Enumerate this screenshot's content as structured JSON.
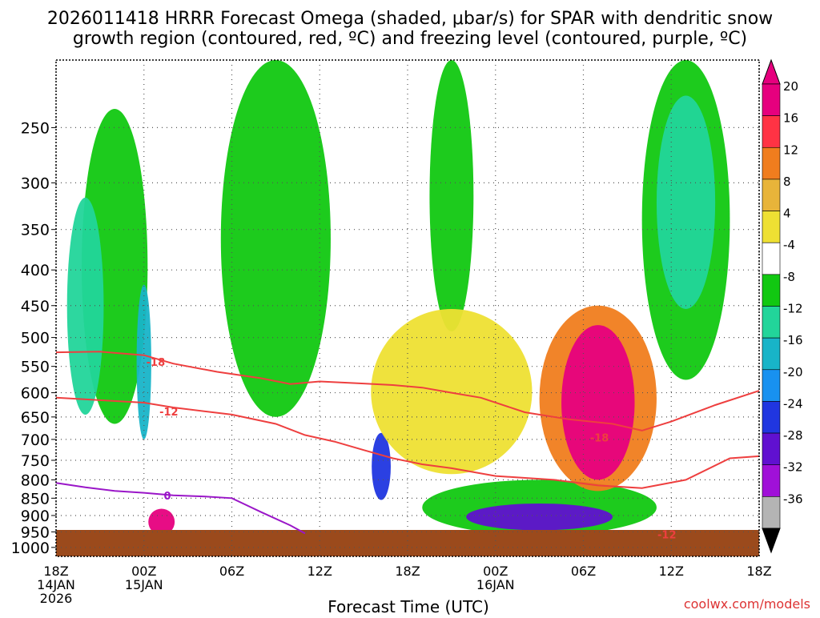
{
  "title": {
    "line1": "2026011418 HRRR Forecast Omega (shaded, μbar/s) for SPAR with dendritic snow",
    "line2": "growth region (contoured, red, ºC) and freezing level (contoured, purple, ºC)"
  },
  "footer": {
    "xlabel": "Forecast Time (UTC)",
    "credit": "coolwx.com/models"
  },
  "colors": {
    "ground": "#9b4a1c",
    "dgz_contour": "#ee3f3f",
    "freezing_contour": "#9a16c8",
    "grid": "#555555"
  },
  "chart_data": {
    "type": "heatmap",
    "xlabel": "Forecast Time (UTC)",
    "ylabel": "",
    "x_range": [
      "2026-01-14 18Z",
      "2026-01-16 18Z"
    ],
    "y_range_hPa": [
      200,
      1030
    ],
    "y_scale": "log-pressure",
    "grid": true,
    "x_ticks": [
      {
        "label": "18Z",
        "sub1": "14JAN",
        "sub2": "2026",
        "hours": 0
      },
      {
        "label": "00Z",
        "sub1": "15JAN",
        "sub2": "",
        "hours": 6
      },
      {
        "label": "06Z",
        "sub1": "",
        "sub2": "",
        "hours": 12
      },
      {
        "label": "12Z",
        "sub1": "",
        "sub2": "",
        "hours": 18
      },
      {
        "label": "18Z",
        "sub1": "",
        "sub2": "",
        "hours": 24
      },
      {
        "label": "00Z",
        "sub1": "16JAN",
        "sub2": "",
        "hours": 30
      },
      {
        "label": "06Z",
        "sub1": "",
        "sub2": "",
        "hours": 36
      },
      {
        "label": "12Z",
        "sub1": "",
        "sub2": "",
        "hours": 42
      },
      {
        "label": "18Z",
        "sub1": "",
        "sub2": "",
        "hours": 48
      }
    ],
    "y_ticks": [
      250,
      300,
      350,
      400,
      450,
      500,
      550,
      600,
      650,
      700,
      750,
      800,
      850,
      900,
      950,
      1000
    ],
    "colorbar": {
      "levels": [
        {
          "label": "20",
          "color": "#e6007e"
        },
        {
          "label": "16",
          "color": "#ff3344"
        },
        {
          "label": "12",
          "color": "#f07d1e"
        },
        {
          "label": "8",
          "color": "#e8b43a"
        },
        {
          "label": "4",
          "color": "#eee033"
        },
        {
          "label": "-4",
          "color": "#ffffff"
        },
        {
          "label": "-8",
          "color": "#11c811"
        },
        {
          "label": "-12",
          "color": "#22d59a"
        },
        {
          "label": "-16",
          "color": "#18b4c8"
        },
        {
          "label": "-20",
          "color": "#1891f0"
        },
        {
          "label": "-24",
          "color": "#2036e0"
        },
        {
          "label": "-28",
          "color": "#6010d0"
        },
        {
          "label": "-32",
          "color": "#a010d8"
        },
        {
          "label": "-36",
          "color": "#b4b4b4"
        }
      ],
      "bottom_color": "#000000",
      "top_color": "#e6007e"
    },
    "contour_labels": [
      {
        "text": "-18",
        "kind": "dgz",
        "hours": 6.8,
        "p": 542
      },
      {
        "text": "-12",
        "kind": "dgz",
        "hours": 7.7,
        "p": 638
      },
      {
        "text": "-18",
        "kind": "dgz",
        "hours": 37.1,
        "p": 696
      },
      {
        "text": "-12",
        "kind": "dgz",
        "hours": 41.7,
        "p": 958
      },
      {
        "text": "0",
        "kind": "freezing",
        "hours": 7.6,
        "p": 843
      }
    ],
    "dgz_upper": [
      [
        0,
        525
      ],
      [
        3,
        524
      ],
      [
        6,
        530
      ],
      [
        8,
        545
      ],
      [
        11,
        560
      ],
      [
        14,
        572
      ],
      [
        16,
        583
      ],
      [
        18,
        578
      ],
      [
        21,
        582
      ],
      [
        23,
        585
      ],
      [
        25,
        590
      ],
      [
        27,
        600
      ],
      [
        29,
        610
      ],
      [
        32,
        640
      ],
      [
        35,
        655
      ],
      [
        38,
        665
      ],
      [
        40,
        680
      ],
      [
        42,
        660
      ],
      [
        45,
        625
      ],
      [
        48,
        596
      ]
    ],
    "dgz_lower": [
      [
        0,
        610
      ],
      [
        3,
        615
      ],
      [
        6,
        620
      ],
      [
        8,
        630
      ],
      [
        12,
        645
      ],
      [
        15,
        665
      ],
      [
        17,
        690
      ],
      [
        19,
        705
      ],
      [
        21,
        725
      ],
      [
        23,
        745
      ],
      [
        25,
        760
      ],
      [
        27,
        770
      ],
      [
        30,
        790
      ],
      [
        34,
        800
      ],
      [
        37,
        815
      ],
      [
        40,
        822
      ],
      [
        43,
        800
      ],
      [
        46,
        745
      ],
      [
        48,
        740
      ]
    ],
    "freezing": [
      [
        0,
        808
      ],
      [
        2,
        820
      ],
      [
        4,
        830
      ],
      [
        6,
        835
      ],
      [
        8,
        842
      ],
      [
        10,
        845
      ],
      [
        12,
        850
      ],
      [
        14,
        890
      ],
      [
        16,
        930
      ],
      [
        17,
        955
      ]
    ],
    "shading_regions": [
      {
        "cat": "-8",
        "hours": 4,
        "p": 450,
        "dh": 4.5,
        "dp": 430
      },
      {
        "cat": "-8",
        "hours": 15,
        "p": 400,
        "dh": 7.5,
        "dp": 500
      },
      {
        "cat": "-8",
        "hours": 27,
        "p": 300,
        "dh": 3,
        "dp": 380
      },
      {
        "cat": "-8",
        "hours": 43,
        "p": 350,
        "dh": 6,
        "dp": 450
      },
      {
        "cat": "-8",
        "hours": 33,
        "p": 880,
        "dh": 16,
        "dp": 160
      },
      {
        "cat": "-12",
        "hours": 2,
        "p": 480,
        "dh": 2.5,
        "dp": 330
      },
      {
        "cat": "-12",
        "hours": 43,
        "p": 340,
        "dh": 4,
        "dp": 230
      },
      {
        "cat": "-16",
        "hours": 6,
        "p": 560,
        "dh": 1,
        "dp": 280
      },
      {
        "cat": "-24",
        "hours": 22.2,
        "p": 770,
        "dh": 1.3,
        "dp": 170
      },
      {
        "cat": "-28",
        "hours": 33,
        "p": 905,
        "dh": 10,
        "dp": 80
      },
      {
        "cat": "4",
        "hours": 27,
        "p": 620,
        "dh": 11,
        "dp": 330
      },
      {
        "cat": "12",
        "hours": 37,
        "p": 640,
        "dh": 8,
        "dp": 380
      },
      {
        "cat": "20",
        "hours": 37,
        "p": 640,
        "dh": 5,
        "dp": 320
      },
      {
        "cat": "20",
        "hours": 7.2,
        "p": 920,
        "dh": 1.8,
        "dp": 80
      }
    ]
  }
}
